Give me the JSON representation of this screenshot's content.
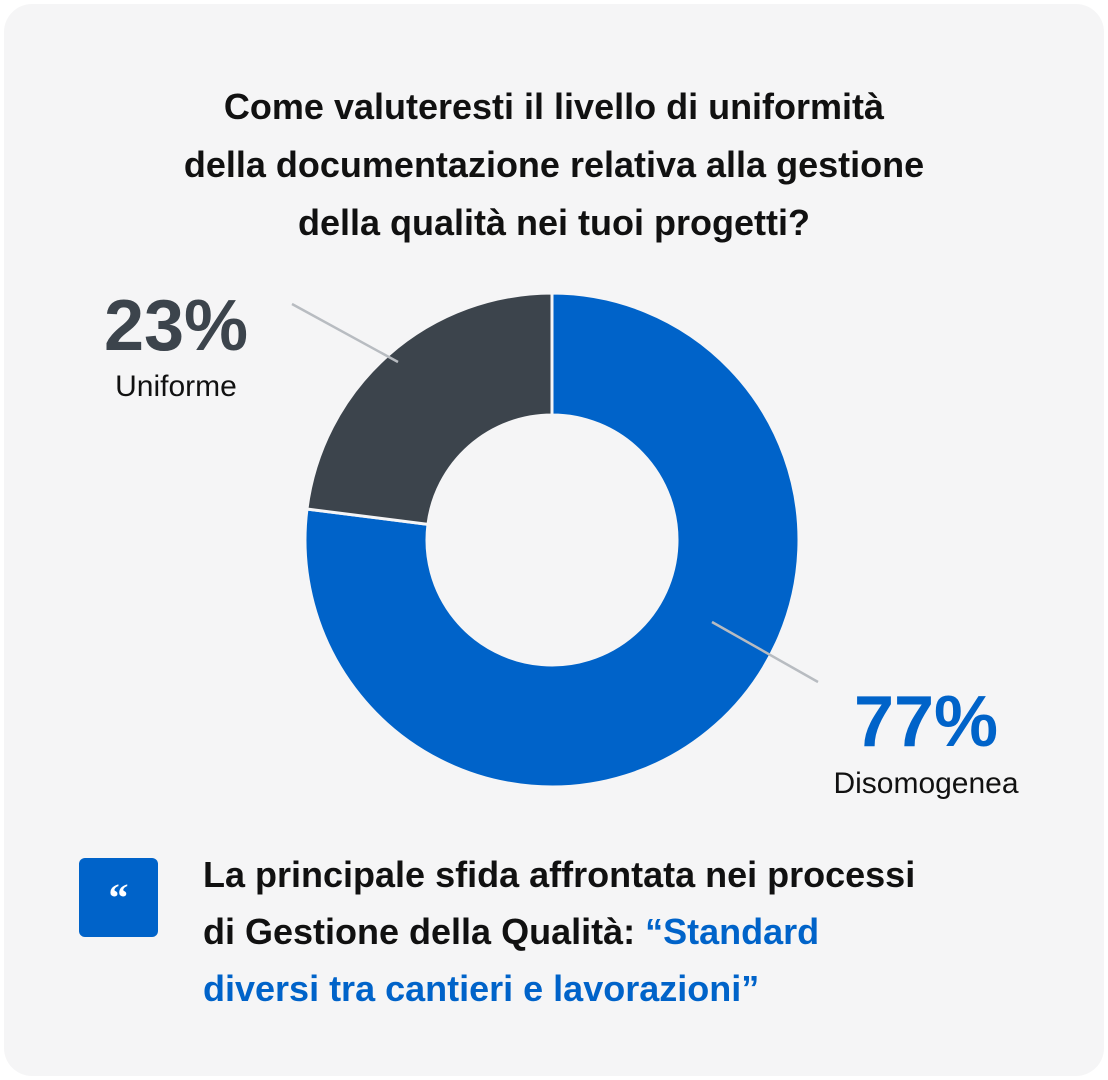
{
  "title_lines": [
    "Come valuteresti il livello di uniformità",
    "della documentazione relativa alla gestione",
    "della qualità nei tuoi progetti?"
  ],
  "chart_data": {
    "type": "pie",
    "donut": true,
    "title": "Come valuteresti il livello di uniformità della documentazione relativa alla gestione della qualità nei tuoi progetti?",
    "slices": [
      {
        "label": "Disomogenea",
        "value": 77,
        "value_label": "77%",
        "color": "#0063c9",
        "label_color": "#0063c9"
      },
      {
        "label": "Uniforme",
        "value": 23,
        "value_label": "23%",
        "color": "#3c444c",
        "label_color": "#3c444c"
      }
    ]
  },
  "quote": {
    "icon": "quote-icon",
    "mark": "“",
    "line1": "La principale sfida affrontata nei processi",
    "line2_plain": "di Gestione della Qualità: ",
    "line2_accent": "“Standard",
    "line3_accent": "diversi tra cantieri e lavorazioni”",
    "accent_color": "#0063c9"
  }
}
